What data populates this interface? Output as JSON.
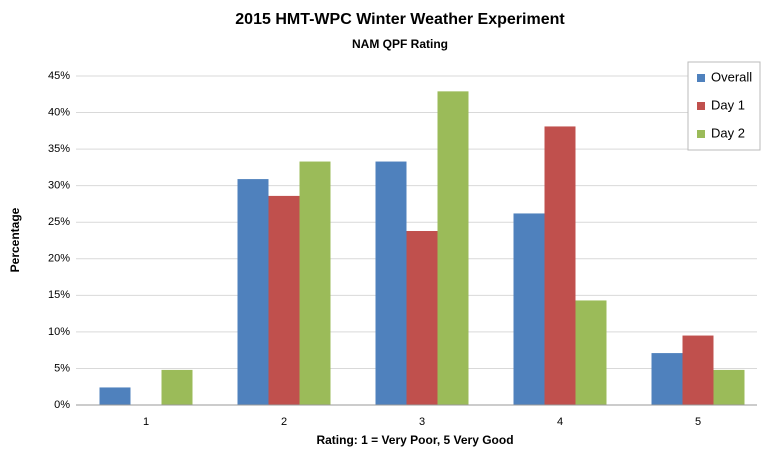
{
  "chart_data": {
    "type": "bar",
    "title": "2015 HMT-WPC Winter Weather Experiment",
    "subtitle": "NAM QPF Rating",
    "x_label": "Rating: 1 = Very Poor, 5 Very Good",
    "y_label": "Percentage",
    "categories": [
      "1",
      "2",
      "3",
      "4",
      "5"
    ],
    "series": [
      {
        "name": "Overall",
        "color": "#4f81bd",
        "values": [
          2.4,
          30.9,
          33.3,
          26.2,
          7.1
        ]
      },
      {
        "name": "Day 1",
        "color": "#c0504d",
        "values": [
          0,
          28.6,
          23.8,
          38.1,
          9.5
        ]
      },
      {
        "name": "Day 2",
        "color": "#9bbb59",
        "values": [
          4.8,
          33.3,
          42.9,
          14.3,
          4.8
        ]
      }
    ],
    "ylim": [
      0,
      45
    ],
    "yticks": [
      {
        "value": 0,
        "label": "0%"
      },
      {
        "value": 5,
        "label": "5%"
      },
      {
        "value": 10,
        "label": "10%"
      },
      {
        "value": 15,
        "label": "15%"
      },
      {
        "value": 20,
        "label": "20%"
      },
      {
        "value": 25,
        "label": "25%"
      },
      {
        "value": 30,
        "label": "30%"
      },
      {
        "value": 35,
        "label": "35%"
      },
      {
        "value": 40,
        "label": "40%"
      },
      {
        "value": 45,
        "label": "45%"
      }
    ],
    "grid": true,
    "legend": "top-right"
  }
}
